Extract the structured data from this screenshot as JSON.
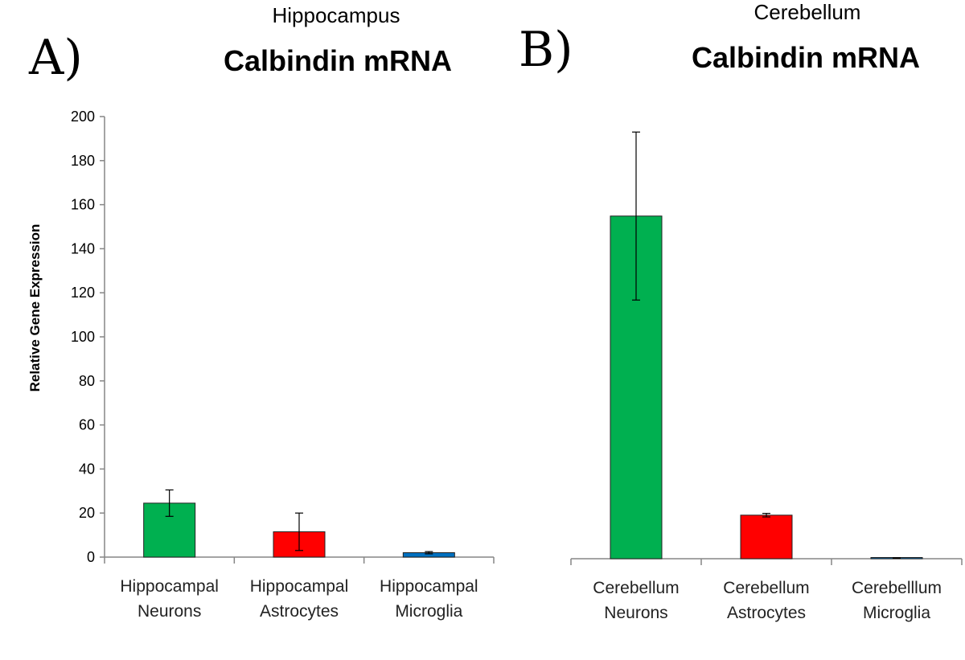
{
  "chart_data": [
    {
      "type": "bar",
      "panel": "A)",
      "region": "Hippocampus",
      "title": "Calbindin mRNA",
      "ylabel": "Relative Gene Expression",
      "xlabel": "",
      "ylim": [
        0,
        200
      ],
      "yticks": [
        0,
        20,
        40,
        60,
        80,
        100,
        120,
        140,
        160,
        180,
        200
      ],
      "categories": [
        [
          "Hippocampal",
          "Neurons"
        ],
        [
          "Hippocampal",
          "Astrocytes"
        ],
        [
          "Hippocampal",
          "Microglia"
        ]
      ],
      "values": [
        24.5,
        11.5,
        2.0
      ],
      "errors": [
        6.0,
        8.5,
        0.5
      ],
      "colors": [
        "#00b050",
        "#ff0000",
        "#0070c0"
      ]
    },
    {
      "type": "bar",
      "panel": "B)",
      "region": "Cerebellum",
      "title": "Calbindin mRNA",
      "ylim": [
        0,
        200
      ],
      "categories": [
        [
          "Cerebellum",
          "Neurons"
        ],
        [
          "Cerebellum",
          "Astrocytes"
        ],
        [
          "Cerebelllum",
          "Microglia"
        ]
      ],
      "values": [
        155.0,
        19.7,
        0.3
      ],
      "errors": [
        38.0,
        0.8,
        0.1
      ],
      "colors": [
        "#00b050",
        "#ff0000",
        "#0070c0"
      ]
    }
  ]
}
